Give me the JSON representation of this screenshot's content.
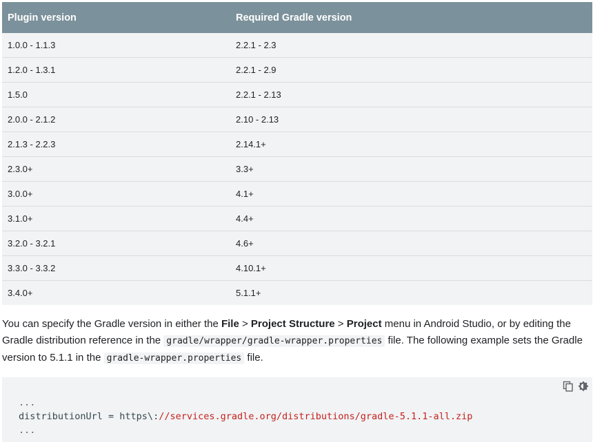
{
  "table": {
    "headers": [
      "Plugin version",
      "Required Gradle version"
    ],
    "rows": [
      [
        "1.0.0 - 1.1.3",
        "2.2.1 - 2.3"
      ],
      [
        "1.2.0 - 1.3.1",
        "2.2.1 - 2.9"
      ],
      [
        "1.5.0",
        "2.2.1 - 2.13"
      ],
      [
        "2.0.0 - 2.1.2",
        "2.10 - 2.13"
      ],
      [
        "2.1.3 - 2.2.3",
        "2.14.1+"
      ],
      [
        "2.3.0+",
        "3.3+"
      ],
      [
        "3.0.0+",
        "4.1+"
      ],
      [
        "3.1.0+",
        "4.4+"
      ],
      [
        "3.2.0 - 3.2.1",
        "4.6+"
      ],
      [
        "3.3.0 - 3.3.2",
        "4.10.1+"
      ],
      [
        "3.4.0+",
        "5.1.1+"
      ]
    ]
  },
  "prose": {
    "t1": "You can specify the Gradle version in either the ",
    "b1": "File",
    "t2": " > ",
    "b2": "Project Structure",
    "t3": " > ",
    "b3": "Project",
    "t4": " menu in Android Studio, or by editing the Gradle distribution reference in the ",
    "code1": "gradle/wrapper/gradle-wrapper.properties",
    "t5": " file. The following example sets the Gradle version to 5.1.1 in the ",
    "code2": "gradle-wrapper.properties",
    "t6": " file."
  },
  "code": {
    "line1": "...",
    "line2_key": "distributionUrl = https\\:",
    "line2_url": "//services.gradle.org/distributions/gradle-5.1.1-all.zip",
    "line3": "..."
  },
  "icons": {
    "copy": "copy-icon",
    "theme": "dark-theme-toggle-icon"
  }
}
